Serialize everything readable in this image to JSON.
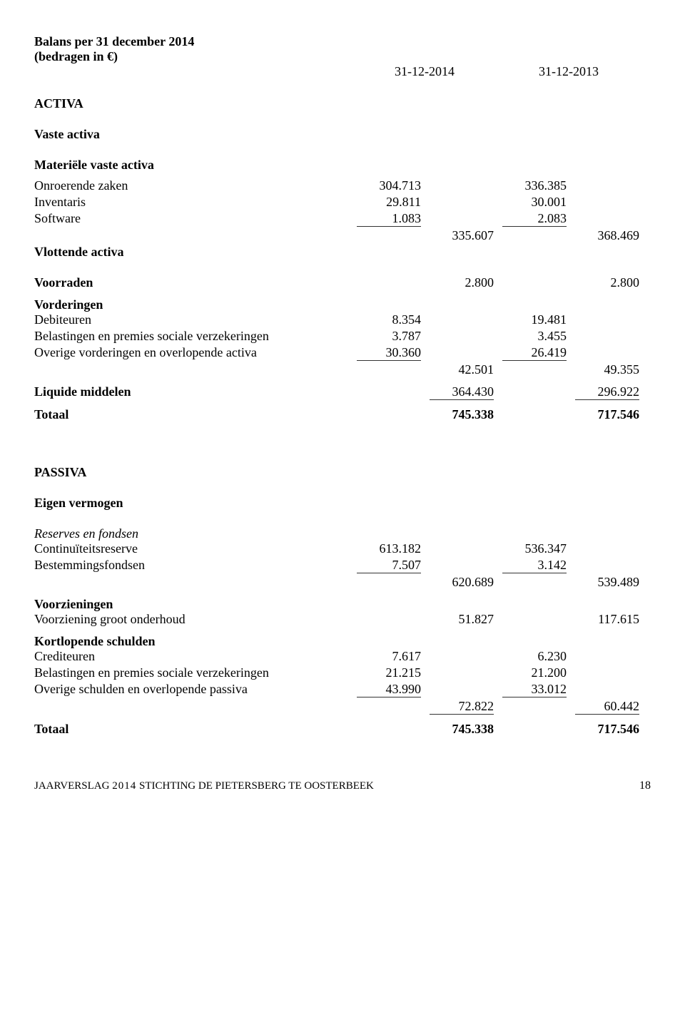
{
  "title_line1": "Balans per 31 december 2014",
  "title_line2": "(bedragen in €)",
  "dates": {
    "col1": "31-12-2014",
    "col2": "31-12-2013"
  },
  "activa": {
    "header": "ACTIVA",
    "vaste_header": "Vaste activa",
    "materiele_header": "Materiële vaste activa",
    "onroerende": {
      "label": "Onroerende zaken",
      "c1": "304.713",
      "c3": "336.385"
    },
    "inventaris": {
      "label": "Inventaris",
      "c1": "29.811",
      "c3": "30.001"
    },
    "software": {
      "label": "Software",
      "c1": "1.083",
      "c3": "2.083"
    },
    "materiele_totaal": {
      "c2": "335.607",
      "c4": "368.469"
    },
    "vlottende_header": "Vlottende activa",
    "voorraden": {
      "label": "Voorraden",
      "c2": "2.800",
      "c4": "2.800"
    },
    "vorderingen_header": "Vorderingen",
    "debiteuren": {
      "label": "Debiteuren",
      "c1": "8.354",
      "c3": "19.481"
    },
    "belastingen": {
      "label": "Belastingen en premies sociale verzekeringen",
      "c1": "3.787",
      "c3": "3.455"
    },
    "overige_vord": {
      "label": "Overige vorderingen en overlopende activa",
      "c1": "30.360",
      "c3": "26.419"
    },
    "vorderingen_totaal": {
      "c2": "42.501",
      "c4": "49.355"
    },
    "liquide": {
      "label": "Liquide middelen",
      "c2": "364.430",
      "c4": "296.922"
    },
    "totaal": {
      "label": "Totaal",
      "c2": "745.338",
      "c4": "717.546"
    }
  },
  "passiva": {
    "header": "PASSIVA",
    "eigen_header": "Eigen vermogen",
    "reserves_header": "Reserves en fondsen",
    "continuit": {
      "label": "Continuïteitsreserve",
      "c1": "613.182",
      "c3": "536.347"
    },
    "bestemming": {
      "label": "Bestemmingsfondsen",
      "c1": "7.507",
      "c3": "3.142"
    },
    "eigen_totaal": {
      "c2": "620.689",
      "c4": "539.489"
    },
    "voorz_header": "Voorzieningen",
    "voorz_groot": {
      "label": "Voorziening groot onderhoud",
      "c2": "51.827",
      "c4": "117.615"
    },
    "kort_header": "Kortlopende schulden",
    "crediteuren": {
      "label": "Crediteuren",
      "c1": "7.617",
      "c3": "6.230"
    },
    "belastingen_p": {
      "label": "Belastingen en premies sociale verzekeringen",
      "c1": "21.215",
      "c3": "21.200"
    },
    "overige_sch": {
      "label": "Overige schulden en overlopende passiva",
      "c1": "43.990",
      "c3": "33.012"
    },
    "kort_totaal": {
      "c2": "72.822",
      "c4": "60.442"
    },
    "totaal": {
      "label": "Totaal",
      "c2": "745.338",
      "c4": "717.546"
    }
  },
  "footer": {
    "left_pre": "JAARVERSLAG ",
    "year": "2014",
    "left_post": " STICHTING DE PIETERSBERG TE OOSTERBEEK",
    "page": "18"
  }
}
